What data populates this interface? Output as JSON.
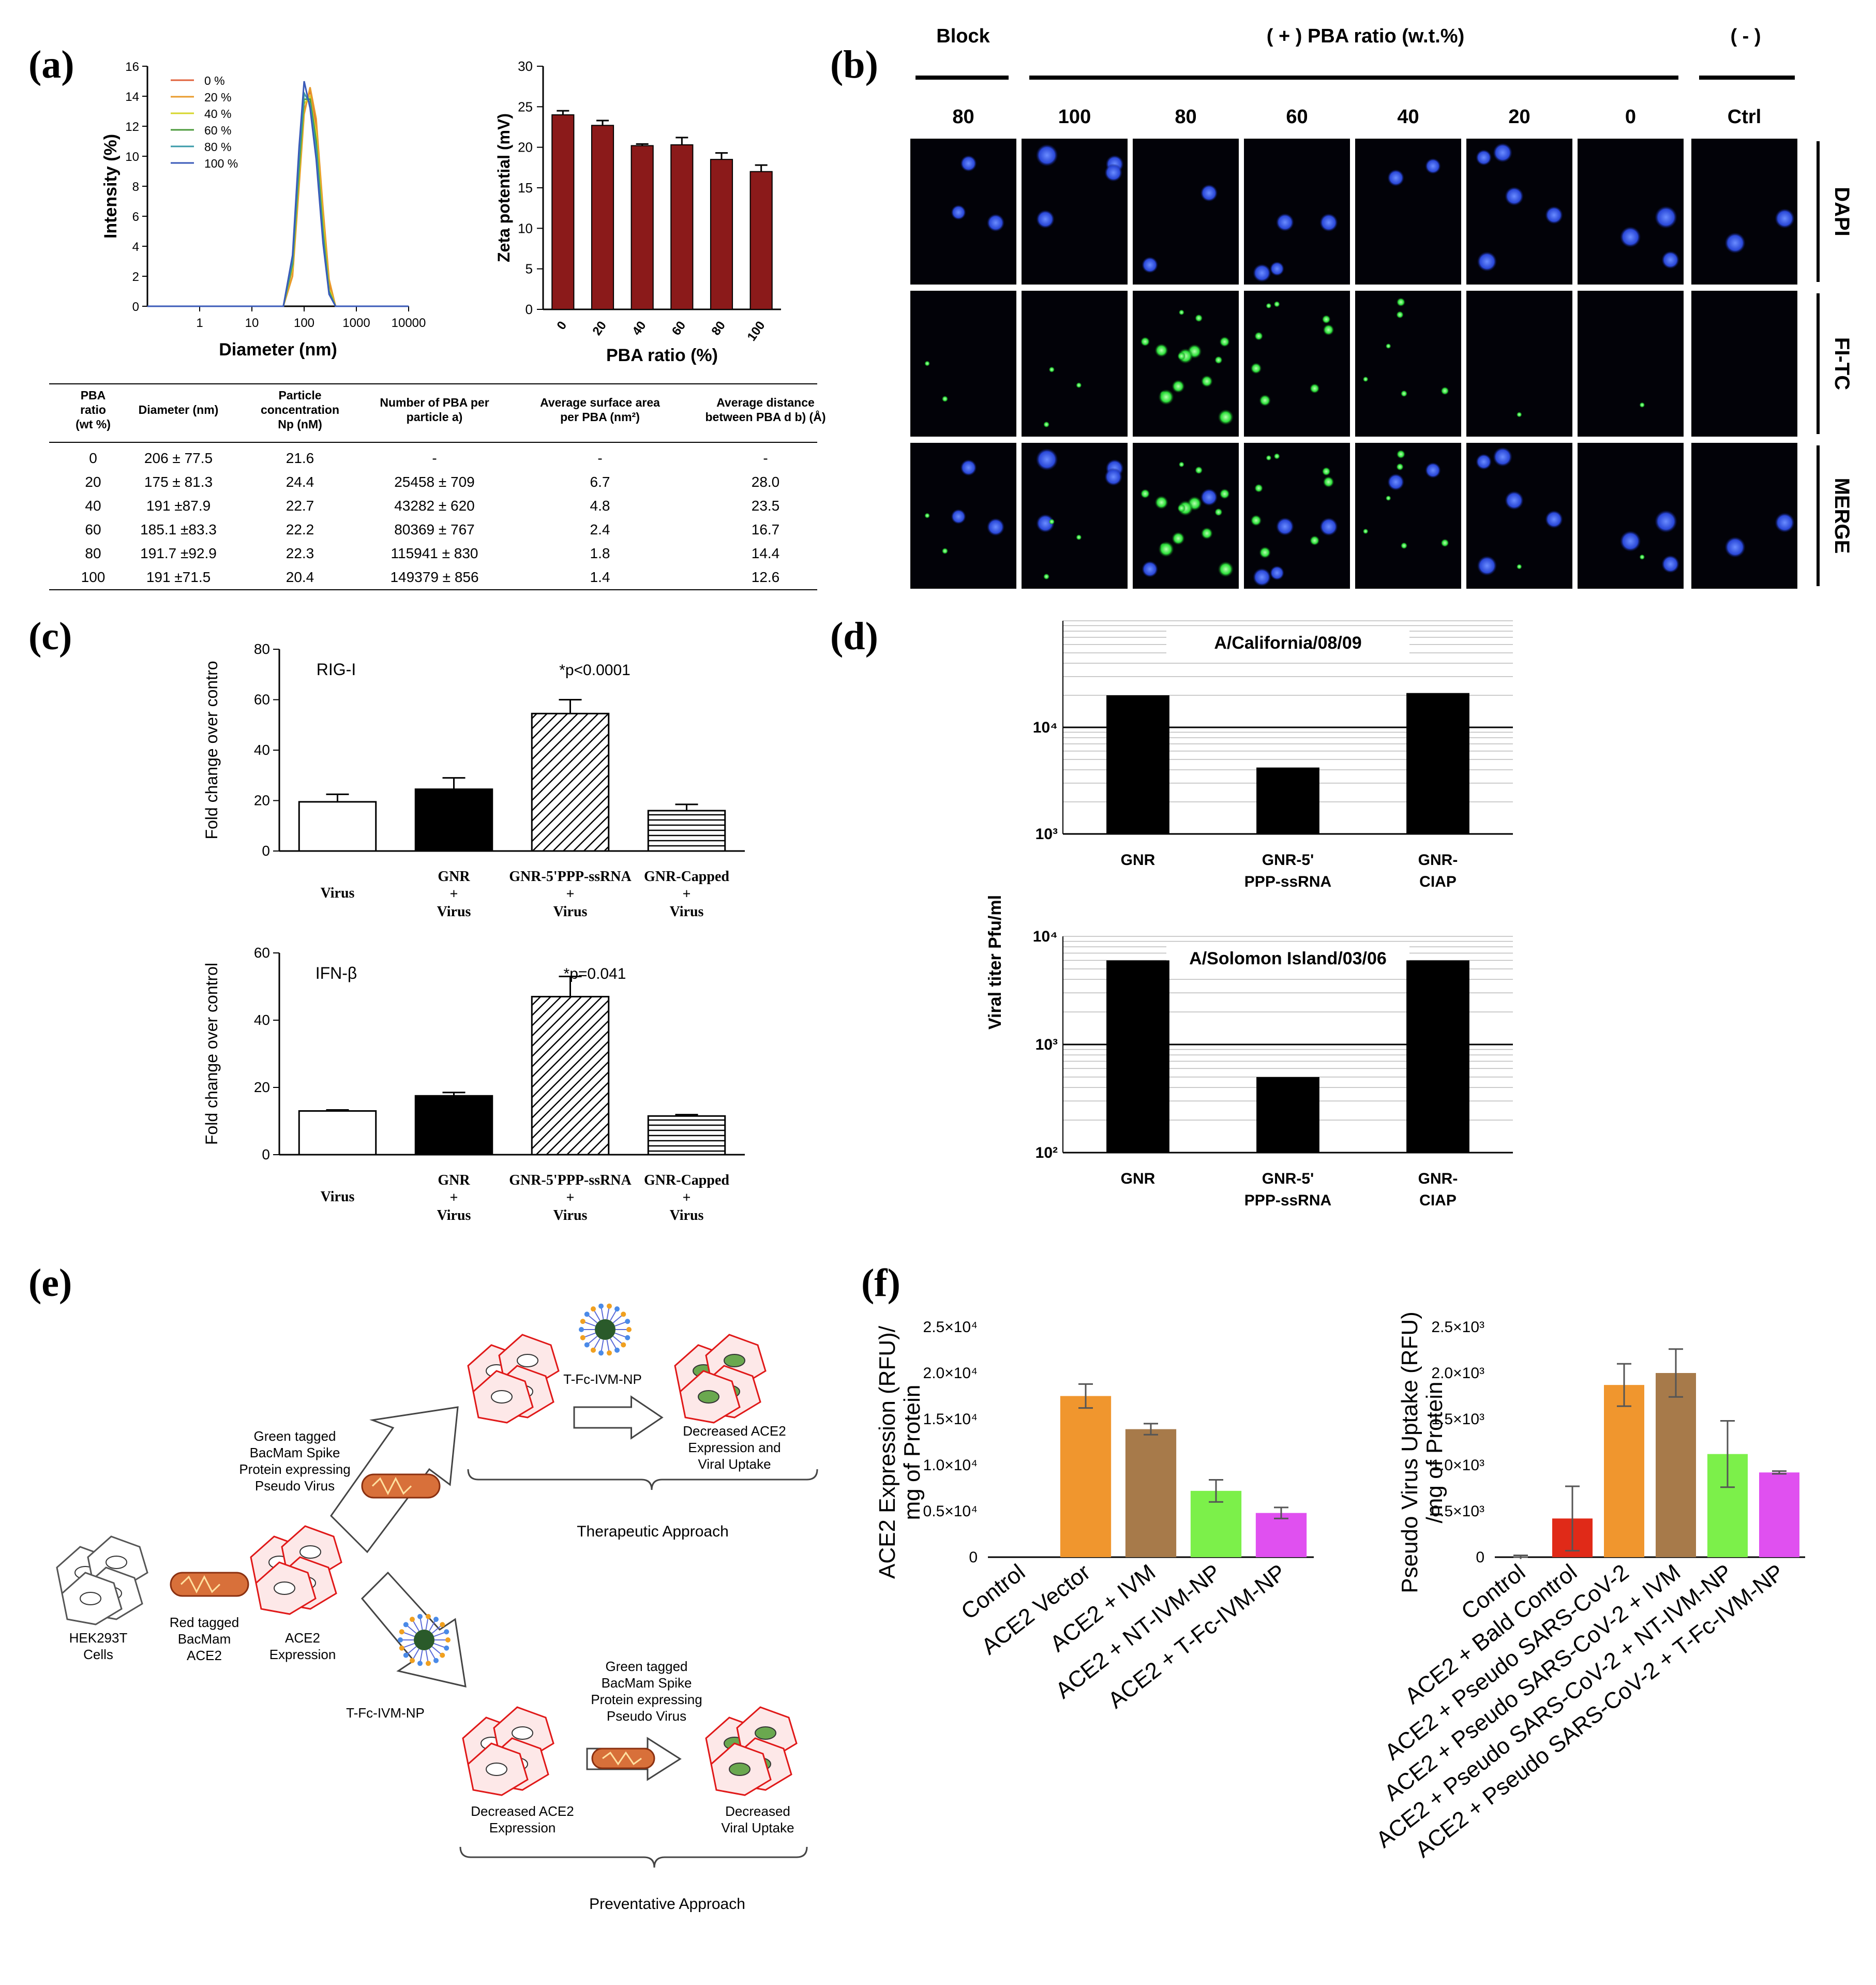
{
  "panels": {
    "a": "(a)",
    "b": "(b)",
    "c": "(c)",
    "d": "(d)",
    "e": "(e)",
    "f": "(f)"
  },
  "chart_data": [
    {
      "id": "a-dls",
      "type": "line",
      "title": "",
      "xlabel": "Diameter (nm)",
      "ylabel": "Intensity (%)",
      "xscale": "log",
      "xticks": [
        "1",
        "10",
        "100",
        "1000",
        "10000"
      ],
      "yticks": [
        "0",
        "2",
        "4",
        "6",
        "8",
        "10",
        "12",
        "14",
        "16"
      ],
      "xlim": [
        0.1,
        10000
      ],
      "ylim": [
        0,
        16
      ],
      "legend_position": "top-left",
      "series": [
        {
          "name": "0 %",
          "color": "#e0603a",
          "x": [
            40,
            60,
            80,
            100,
            130,
            170,
            230,
            300,
            400
          ],
          "y": [
            0,
            2.5,
            8.5,
            13.0,
            14.4,
            12.0,
            6.0,
            1.5,
            0
          ]
        },
        {
          "name": "20 %",
          "color": "#e89a2a",
          "x": [
            40,
            60,
            80,
            100,
            130,
            170,
            230,
            300,
            400
          ],
          "y": [
            0,
            2.0,
            8.0,
            12.8,
            14.6,
            12.5,
            6.5,
            1.8,
            0
          ]
        },
        {
          "name": "40 %",
          "color": "#d6d62a",
          "x": [
            40,
            60,
            80,
            100,
            130,
            170,
            230,
            300,
            400
          ],
          "y": [
            0,
            2.6,
            8.8,
            13.5,
            14.0,
            11.5,
            5.5,
            1.2,
            0
          ]
        },
        {
          "name": "60 %",
          "color": "#4a9a3a",
          "x": [
            40,
            60,
            80,
            100,
            130,
            170,
            230,
            300,
            400
          ],
          "y": [
            0,
            2.8,
            9.2,
            13.8,
            13.8,
            11.0,
            5.0,
            1.0,
            0
          ]
        },
        {
          "name": "80 %",
          "color": "#3a9aa8",
          "x": [
            40,
            60,
            80,
            100,
            130,
            170,
            230,
            300,
            400
          ],
          "y": [
            0,
            3.0,
            9.8,
            14.2,
            13.5,
            10.5,
            4.6,
            0.9,
            0
          ]
        },
        {
          "name": "100 %",
          "color": "#3a5ab8",
          "x": [
            40,
            60,
            80,
            100,
            130,
            170,
            230,
            300,
            400
          ],
          "y": [
            0,
            3.4,
            10.6,
            15.0,
            13.2,
            9.8,
            4.2,
            0.8,
            0
          ]
        }
      ]
    },
    {
      "id": "a-zeta",
      "type": "bar",
      "title": "",
      "xlabel": "PBA ratio (%)",
      "ylabel": "Zeta potential (mV)",
      "categories": [
        "0",
        "20",
        "40",
        "60",
        "80",
        "100"
      ],
      "values": [
        24.0,
        22.7,
        20.2,
        20.3,
        18.5,
        17.0
      ],
      "errors": [
        0.5,
        0.6,
        0.2,
        0.9,
        0.8,
        0.8
      ],
      "ylim": [
        0,
        30
      ],
      "yticks": [
        "0",
        "5",
        "10",
        "15",
        "20",
        "25",
        "30"
      ],
      "color": "#8b1a1a"
    },
    {
      "id": "c-rigi",
      "type": "bar",
      "title": "RIG-I",
      "annotation": "*p<0.0001",
      "ylabel": "Fold change over contro",
      "categories": [
        [
          "Virus"
        ],
        [
          "GNR",
          "+",
          "Virus"
        ],
        [
          "GNR-5'PPP-ssRNA",
          "+",
          "Virus"
        ],
        [
          "GNR-Capped",
          "+",
          "Virus"
        ]
      ],
      "values": [
        19.5,
        24.5,
        54.5,
        16.0
      ],
      "errors": [
        3.0,
        4.5,
        5.5,
        2.5
      ],
      "fills": [
        "white",
        "black",
        "diagonal",
        "horizontal"
      ],
      "ylim": [
        0,
        80
      ],
      "yticks": [
        "0",
        "20",
        "40",
        "60",
        "80"
      ]
    },
    {
      "id": "c-ifnb",
      "type": "bar",
      "title": "IFN-β",
      "annotation": "*p=0.041",
      "ylabel": "Fold change over control",
      "categories": [
        [
          "Virus"
        ],
        [
          "GNR",
          "+",
          "Virus"
        ],
        [
          "GNR-5'PPP-ssRNA",
          "+",
          "Virus"
        ],
        [
          "GNR-Capped",
          "+",
          "Virus"
        ]
      ],
      "values": [
        13.0,
        17.5,
        47.0,
        11.5
      ],
      "errors": [
        0.3,
        1.0,
        6.0,
        0.4
      ],
      "fills": [
        "white",
        "black",
        "diagonal",
        "horizontal"
      ],
      "ylim": [
        0,
        60
      ],
      "yticks": [
        "0",
        "20",
        "40",
        "60"
      ]
    },
    {
      "id": "d-california",
      "type": "bar",
      "title": "A/California/08/09",
      "ylabel": "Viral titer Pfu/ml",
      "yscale": "log",
      "ylim": [
        1000,
        100000
      ],
      "ytick_labels": [
        "10³",
        "10⁴"
      ],
      "categories": [
        [
          "GNR"
        ],
        [
          "GNR-5'",
          "PPP-ssRNA"
        ],
        [
          "GNR-",
          "CIAP"
        ]
      ],
      "values": [
        20000,
        4200,
        21000
      ]
    },
    {
      "id": "d-solomon",
      "type": "bar",
      "title": "A/Solomon Island/03/06",
      "ylabel": "Viral titer Pfu/ml",
      "yscale": "log",
      "ylim": [
        100,
        10000
      ],
      "ytick_labels": [
        "10²",
        "10³",
        "10⁴"
      ],
      "categories": [
        [
          "GNR"
        ],
        [
          "GNR-5'",
          "PPP-ssRNA"
        ],
        [
          "GNR-",
          "CIAP"
        ]
      ],
      "values": [
        6000,
        500,
        6000
      ]
    },
    {
      "id": "f-ace2",
      "type": "bar",
      "ylabel": [
        "ACE2 Expression (RFU)/",
        "mg of Protein"
      ],
      "categories": [
        "Control",
        "ACE2 Vector",
        "ACE2 + IVM",
        "ACE2 + NT-IVM-NP",
        "ACE2 + T-Fc-IVM-NP"
      ],
      "values": [
        0,
        17500,
        13900,
        7200,
        4800
      ],
      "errors": [
        0,
        1300,
        600,
        1200,
        600
      ],
      "colors": [
        "#ffffff",
        "#f0962e",
        "#a77a4a",
        "#7cf04a",
        "#e050f0"
      ],
      "ylim": [
        0,
        25000
      ],
      "ytick_labels": [
        "0",
        "0.5×10⁴",
        "1.0×10⁴",
        "1.5×10⁴",
        "2.0×10⁴",
        "2.5×10⁴"
      ]
    },
    {
      "id": "f-pseudo",
      "type": "bar",
      "ylabel": [
        "Pseudo Virus Uptake (RFU)",
        "/mg of Protein"
      ],
      "categories": [
        "Control",
        "ACE2 + Bald Control",
        "ACE2 + Pseudo SARS-CoV-2",
        "ACE2 + Pseudo SARS-CoV-2 + IVM",
        "ACE2 + Pseudo SARS-CoV-2 + NT-IVM-NP",
        "ACE2 + Pseudo SARS-CoV-2 + T-Fc-IVM-NP"
      ],
      "values": [
        0,
        420,
        1870,
        2000,
        1120,
        920
      ],
      "errors": [
        20,
        350,
        230,
        260,
        360,
        15
      ],
      "colors": [
        "#ffffff",
        "#e02a18",
        "#f0962e",
        "#a77a4a",
        "#7cf04a",
        "#e050f0"
      ],
      "ylim": [
        0,
        2500
      ],
      "ytick_labels": [
        "0",
        "0.5×10³",
        "1.0×10³",
        "1.5×10³",
        "2.0×10³",
        "2.5×10³"
      ]
    }
  ],
  "table_a": {
    "headers": [
      [
        "PBA",
        "ratio",
        "(wt %)"
      ],
      [
        "Diameter (nm)"
      ],
      [
        "Particle",
        "concentration",
        "Np (nM)"
      ],
      [
        "Number of PBA per",
        "particle a)"
      ],
      [
        "Average surface area",
        "per PBA (nm²)"
      ],
      [
        "Average distance",
        "between PBA d b) (Å)"
      ]
    ],
    "rows": [
      [
        "0",
        "206 ± 77.5",
        "21.6",
        "-",
        "-",
        "-"
      ],
      [
        "20",
        "175 ± 81.3",
        "24.4",
        "25458 ± 709",
        "6.7",
        "28.0"
      ],
      [
        "40",
        "191 ±87.9",
        "22.7",
        "43282 ± 620",
        "4.8",
        "23.5"
      ],
      [
        "60",
        "185.1 ±83.3",
        "22.2",
        "80369 ± 767",
        "2.4",
        "16.7"
      ],
      [
        "80",
        "191.7 ±92.9",
        "22.3",
        "115941 ± 830",
        "1.8",
        "14.4"
      ],
      [
        "100",
        "191 ±71.5",
        "20.4",
        "149379 ± 856",
        "1.4",
        "12.6"
      ]
    ]
  },
  "microscopy_b": {
    "group_block": "Block",
    "group_pba": "( + ) PBA ratio (w.t.%)",
    "group_neg": "( - )",
    "columns": [
      "80",
      "100",
      "80",
      "60",
      "40",
      "20",
      "0",
      "Ctrl"
    ],
    "rows": [
      "DAPI",
      "FI-TC",
      "MERGE"
    ],
    "green_level": [
      0.15,
      0.2,
      1.0,
      0.6,
      0.4,
      0.05,
      0.08,
      0
    ]
  },
  "diagram_e": {
    "labels": {
      "hek": [
        "HEK293T",
        "Cells"
      ],
      "red_ace2": [
        "Red tagged",
        "BacMam",
        "ACE2"
      ],
      "ace2_expr": [
        "ACE2",
        "Expression"
      ],
      "green_spike_top": [
        "Green tagged",
        "BacMam Spike",
        "Protein expressing",
        "Pseudo Virus"
      ],
      "tfc_top": "T-Fc-IVM-NP",
      "decreased_top": [
        "Decreased ACE2",
        "Expression and",
        "Viral Uptake"
      ],
      "therapeutic": "Therapeutic Approach",
      "tfc_bottom": "T-Fc-IVM-NP",
      "green_spike_bottom": [
        "Green tagged",
        "BacMam Spike",
        "Protein expressing",
        "Pseudo Virus"
      ],
      "decreased_ace2": [
        "Decreased ACE2",
        "Expression"
      ],
      "decreased_viral": [
        "Decreased",
        "Viral Uptake"
      ],
      "preventative": "Preventative Approach"
    }
  }
}
